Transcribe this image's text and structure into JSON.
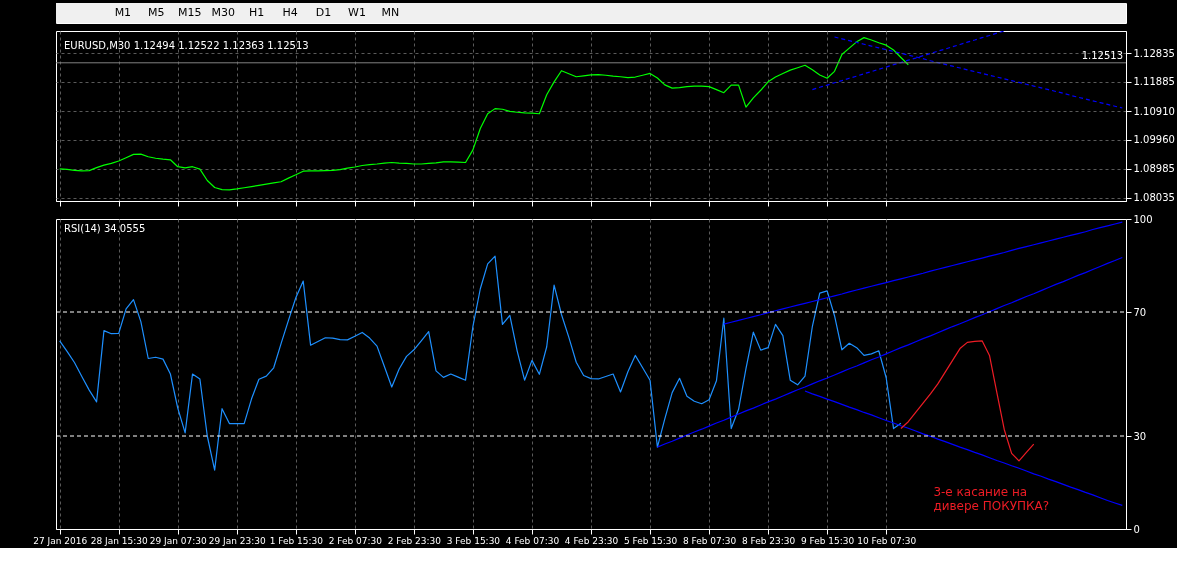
{
  "chart_data": [
    {
      "type": "other",
      "annotations": [
        "M1",
        "M5",
        "M15",
        "M30",
        "H1",
        "H4",
        "D1",
        "W1",
        "MN"
      ]
    },
    {
      "type": "line",
      "title": "EURUSD,M30  1.12494 1.12522 1.12363 1.12513",
      "ylim": [
        1.0792,
        1.1357
      ],
      "yticks": [
        {
          "value": 1.08035,
          "label": "1.08035"
        },
        {
          "value": 1.08985,
          "label": "1.08985"
        },
        {
          "value": 1.0996,
          "label": "1.09960"
        },
        {
          "value": 1.1091,
          "label": "1.10910"
        },
        {
          "value": 1.11885,
          "label": "1.11885"
        },
        {
          "value": 1.12835,
          "label": "1.12835"
        }
      ],
      "categories": [
        null,
        null,
        null,
        null,
        null,
        null,
        null,
        null,
        null,
        null,
        null,
        null,
        null,
        null,
        null,
        null,
        null,
        null,
        null,
        null,
        null,
        null,
        null,
        null,
        null,
        null,
        null,
        null,
        null,
        null,
        null,
        null,
        null,
        null,
        null,
        null,
        null,
        null,
        null,
        null,
        null,
        null,
        null,
        null,
        null,
        null,
        null,
        null,
        null,
        null,
        null,
        null,
        null,
        null,
        null,
        null,
        null,
        null,
        null,
        null,
        null,
        null,
        null,
        null,
        null,
        null,
        null,
        null,
        null,
        null,
        null,
        null,
        null,
        null,
        null,
        null,
        null,
        null,
        null,
        null,
        null,
        null,
        null,
        null,
        null,
        null,
        null,
        null,
        null,
        null,
        null,
        null,
        null,
        null,
        null,
        null,
        null,
        null,
        null,
        null,
        null,
        null,
        null,
        null,
        null,
        null,
        null,
        null,
        null,
        null,
        null,
        null,
        null,
        null,
        null,
        null,
        null,
        null,
        null,
        null,
        null,
        null,
        null,
        null,
        null,
        null,
        null,
        null,
        null,
        null,
        null,
        null,
        null,
        null,
        null,
        null,
        null,
        null,
        null,
        null,
        null,
        null,
        null,
        null,
        null
      ],
      "tick_labels": "y",
      "grid": true,
      "ref_lines": [
        {
          "axis": "y",
          "value": 1.12513,
          "label": "1.12513",
          "color": "#808080"
        }
      ],
      "series": [
        {
          "color": "#00ff00",
          "values": [
            1.0899,
            1.0897,
            1.0894,
            1.0892,
            1.0893,
            1.0903,
            1.0911,
            1.0917,
            1.0925,
            1.0936,
            1.0947,
            1.0948,
            1.0939,
            1.0934,
            1.0931,
            1.0929,
            1.0906,
            1.0902,
            1.0906,
            1.0898,
            1.086,
            1.0837,
            1.083,
            1.0829,
            1.0832,
            1.0836,
            1.084,
            1.0844,
            1.0848,
            1.0852,
            1.0856,
            1.0868,
            1.0879,
            1.0891,
            1.0892,
            1.0892,
            1.0893,
            1.0894,
            1.0896,
            1.0901,
            1.0905,
            1.091,
            1.0913,
            1.0915,
            1.0918,
            1.092,
            1.0918,
            1.0917,
            1.0915,
            1.0915,
            1.0917,
            1.0919,
            1.0922,
            1.0922,
            1.0921,
            1.092,
            1.0962,
            1.1033,
            1.1082,
            1.1099,
            1.1097,
            1.109,
            1.1087,
            1.1085,
            1.1084,
            1.1082,
            1.1145,
            1.1188,
            1.1225,
            1.1215,
            1.1205,
            1.1208,
            1.1211,
            1.1212,
            1.121,
            1.1207,
            1.1205,
            1.1202,
            1.1204,
            1.121,
            1.1216,
            1.1201,
            1.1178,
            1.1167,
            1.1169,
            1.1172,
            1.1174,
            1.1174,
            1.1172,
            1.1162,
            1.1152,
            1.1177,
            1.1177,
            1.1104,
            1.1135,
            1.116,
            1.1188,
            1.1204,
            1.1216,
            1.1227,
            1.1235,
            1.1243,
            1.1228,
            1.1211,
            1.12,
            1.1223,
            1.1279,
            1.13,
            1.1321,
            1.1335,
            1.1327,
            1.1318,
            1.131,
            1.1294,
            1.1269,
            1.1245,
            null,
            null,
            null,
            null,
            null,
            null,
            null,
            null,
            null,
            null,
            null,
            null,
            null,
            null,
            null,
            null,
            null,
            null,
            null,
            null,
            null,
            null,
            null,
            null,
            null,
            null,
            null,
            null,
            null
          ]
        },
        {
          "color": "#0000ff",
          "line_style": "dashed",
          "values": [
            null,
            null,
            null,
            null,
            null,
            null,
            null,
            null,
            null,
            null,
            null,
            null,
            null,
            null,
            null,
            null,
            null,
            null,
            null,
            null,
            null,
            null,
            null,
            null,
            null,
            null,
            null,
            null,
            null,
            null,
            null,
            null,
            null,
            null,
            null,
            null,
            null,
            null,
            null,
            null,
            null,
            null,
            null,
            null,
            null,
            null,
            null,
            null,
            null,
            null,
            null,
            null,
            null,
            null,
            null,
            null,
            null,
            null,
            null,
            null,
            null,
            null,
            null,
            null,
            null,
            null,
            null,
            null,
            null,
            null,
            null,
            null,
            null,
            null,
            null,
            null,
            null,
            null,
            null,
            null,
            null,
            null,
            null,
            null,
            null,
            null,
            null,
            null,
            null,
            null,
            null,
            null,
            null,
            null,
            null,
            null,
            null,
            null,
            null,
            null,
            null,
            null,
            1.1162,
            1.117,
            1.1177,
            1.1185,
            1.1192,
            1.12,
            1.1207,
            1.1215,
            1.1222,
            1.123,
            1.1237,
            1.1245,
            1.1252,
            1.126,
            1.1267,
            1.1275,
            1.1282,
            1.129,
            1.1297,
            1.1305,
            1.1312,
            1.132,
            1.1327,
            1.1335,
            1.1342,
            1.135,
            1.1357,
            null,
            null,
            null,
            null,
            null,
            null,
            null,
            null,
            null,
            null,
            null,
            null,
            null,
            null,
            null,
            null
          ]
        },
        {
          "color": "#0000ff",
          "line_style": "dashed",
          "values": [
            null,
            null,
            null,
            null,
            null,
            null,
            null,
            null,
            null,
            null,
            null,
            null,
            null,
            null,
            null,
            null,
            null,
            null,
            null,
            null,
            null,
            null,
            null,
            null,
            null,
            null,
            null,
            null,
            null,
            null,
            null,
            null,
            null,
            null,
            null,
            null,
            null,
            null,
            null,
            null,
            null,
            null,
            null,
            null,
            null,
            null,
            null,
            null,
            null,
            null,
            null,
            null,
            null,
            null,
            null,
            null,
            null,
            null,
            null,
            null,
            null,
            null,
            null,
            null,
            null,
            null,
            null,
            null,
            null,
            null,
            null,
            null,
            null,
            null,
            null,
            null,
            null,
            null,
            null,
            null,
            null,
            null,
            null,
            null,
            null,
            null,
            null,
            null,
            null,
            null,
            null,
            null,
            null,
            null,
            null,
            null,
            null,
            null,
            null,
            null,
            null,
            null,
            null,
            null,
            null,
            1.1337,
            1.1331,
            1.1325,
            1.1319,
            1.1313,
            1.1307,
            1.1301,
            1.1295,
            1.1289,
            1.1283,
            1.1277,
            1.1271,
            1.1265,
            1.1258,
            1.1252,
            1.1246,
            1.124,
            1.1234,
            1.1228,
            1.1222,
            1.1216,
            1.121,
            1.1204,
            1.1198,
            1.1192,
            1.1186,
            1.118,
            1.1174,
            1.1168,
            1.1162,
            1.1156,
            1.115,
            1.1143,
            1.1137,
            1.1131,
            1.1125,
            1.1119,
            1.1113,
            1.1107,
            1.1101
          ]
        }
      ]
    },
    {
      "type": "line",
      "title": "RSI(14) 34.0555",
      "ylim": [
        0,
        100
      ],
      "yticks": [
        0,
        30,
        70,
        100
      ],
      "categories": [
        "27 Jan 2016",
        null,
        null,
        null,
        null,
        null,
        null,
        null,
        "28 Jan 15:30",
        null,
        null,
        null,
        null,
        null,
        null,
        null,
        "29 Jan 07:30",
        null,
        null,
        null,
        null,
        null,
        null,
        null,
        "29 Jan 23:30",
        null,
        null,
        null,
        null,
        null,
        null,
        null,
        "1 Feb 15:30",
        null,
        null,
        null,
        null,
        null,
        null,
        null,
        "2 Feb 07:30",
        null,
        null,
        null,
        null,
        null,
        null,
        null,
        "2 Feb 23:30",
        null,
        null,
        null,
        null,
        null,
        null,
        null,
        "3 Feb 15:30",
        null,
        null,
        null,
        null,
        null,
        null,
        null,
        "4 Feb 07:30",
        null,
        null,
        null,
        null,
        null,
        null,
        null,
        "4 Feb 23:30",
        null,
        null,
        null,
        null,
        null,
        null,
        null,
        "5 Feb 15:30",
        null,
        null,
        null,
        null,
        null,
        null,
        null,
        "8 Feb 07:30",
        null,
        null,
        null,
        null,
        null,
        null,
        null,
        "8 Feb 23:30",
        null,
        null,
        null,
        null,
        null,
        null,
        null,
        "9 Feb 15:30",
        null,
        null,
        null,
        null,
        null,
        null,
        null,
        "10 Feb 07:30",
        null,
        null,
        null,
        null,
        null,
        null,
        null,
        null,
        null,
        null,
        null,
        null,
        null,
        null,
        null,
        null,
        null,
        null,
        null,
        null,
        null,
        null,
        null,
        null,
        null,
        null,
        null,
        null,
        null,
        null,
        null,
        null
      ],
      "grid": "x",
      "ref_lines": [
        {
          "axis": "y",
          "value": 70,
          "color": "#ffffff",
          "line_style": "dashed"
        },
        {
          "axis": "y",
          "value": 30,
          "color": "#ffffff",
          "line_style": "dashed"
        }
      ],
      "annotations": [
        "3-е касание на\nдивере ПОКУПКА?"
      ],
      "series": [
        {
          "color": "#1e90ff",
          "values": [
            60.7,
            57.3,
            53.7,
            49.2,
            44.8,
            41,
            64,
            63,
            63.1,
            71,
            74,
            66.9,
            55,
            55.4,
            54.8,
            50,
            39,
            31,
            50,
            48.4,
            30,
            19,
            38.8,
            34,
            34,
            34,
            42,
            48.3,
            49.3,
            52,
            59.8,
            67.3,
            74.6,
            80,
            59.3,
            60.5,
            61.7,
            61.6,
            61.1,
            61,
            62.2,
            63.4,
            61.6,
            59,
            52.4,
            45.8,
            51.6,
            55.7,
            57.8,
            60.7,
            63.7,
            51,
            48.9,
            50,
            49,
            48,
            65.4,
            77.5,
            85.5,
            88,
            66,
            68.9,
            57.4,
            48,
            54.4,
            49.9,
            58.8,
            78.7,
            69.2,
            61.8,
            53.8,
            49.5,
            48.5,
            48.4,
            49.2,
            50,
            44.2,
            50.7,
            56,
            52,
            48,
            26.4,
            35.5,
            44,
            48.6,
            42.8,
            41.2,
            40.4,
            41.7,
            47.8,
            68,
            32.4,
            38.6,
            51.7,
            63.5,
            57.7,
            58.5,
            66,
            62.4,
            48,
            46.5,
            49.3,
            65.4,
            76.1,
            76.8,
            68.8,
            57.8,
            59.9,
            58.5,
            56,
            56.5,
            57.5,
            48.8,
            32.4,
            34.1,
            null,
            null,
            null,
            null,
            null,
            null,
            null,
            null,
            null,
            null,
            null,
            null,
            null,
            null,
            null,
            null,
            null,
            null,
            null,
            null,
            null,
            null,
            null,
            null,
            null,
            null,
            null,
            null,
            null,
            null
          ]
        },
        {
          "color": "#0000ff",
          "values": [
            null,
            null,
            null,
            null,
            null,
            null,
            null,
            null,
            null,
            null,
            null,
            null,
            null,
            null,
            null,
            null,
            null,
            null,
            null,
            null,
            null,
            null,
            null,
            null,
            null,
            null,
            null,
            null,
            null,
            null,
            null,
            null,
            null,
            null,
            null,
            null,
            null,
            null,
            null,
            null,
            null,
            null,
            null,
            null,
            null,
            null,
            null,
            null,
            null,
            null,
            null,
            null,
            null,
            null,
            null,
            null,
            null,
            null,
            null,
            null,
            null,
            null,
            null,
            null,
            null,
            null,
            null,
            null,
            null,
            null,
            null,
            null,
            null,
            null,
            null,
            null,
            null,
            null,
            null,
            null,
            null,
            null,
            null,
            null,
            null,
            null,
            null,
            null,
            null,
            null,
            66.1,
            66.7,
            67.3,
            67.9,
            68.5,
            69.1,
            69.8,
            70.4,
            71,
            71.6,
            72.2,
            72.8,
            73.4,
            74,
            74.6,
            75.2,
            75.8,
            76.5,
            77.1,
            77.7,
            78.3,
            78.9,
            79.5,
            80.1,
            80.7,
            81.3,
            81.9,
            82.5,
            83.2,
            83.8,
            84.4,
            85,
            85.6,
            86.2,
            86.8,
            87.4,
            88,
            88.6,
            89.2,
            89.9,
            90.5,
            91.1,
            91.7,
            92.3,
            92.9,
            93.5,
            94.1,
            94.7,
            95.3,
            95.9,
            96.6,
            97.2,
            97.8,
            98.4,
            99
          ]
        },
        {
          "color": "#0000ff",
          "values": [
            null,
            null,
            null,
            null,
            null,
            null,
            null,
            null,
            null,
            null,
            null,
            null,
            null,
            null,
            null,
            null,
            null,
            null,
            null,
            null,
            null,
            null,
            null,
            null,
            null,
            null,
            null,
            null,
            null,
            null,
            null,
            null,
            null,
            null,
            null,
            null,
            null,
            null,
            null,
            null,
            null,
            null,
            null,
            null,
            null,
            null,
            null,
            null,
            null,
            null,
            null,
            null,
            null,
            null,
            null,
            null,
            null,
            null,
            null,
            null,
            null,
            null,
            null,
            null,
            null,
            null,
            null,
            null,
            null,
            null,
            null,
            null,
            null,
            null,
            null,
            null,
            null,
            null,
            null,
            null,
            null,
            26.4,
            27.4,
            28.3,
            29.3,
            30.3,
            31.3,
            32.2,
            33.2,
            34.2,
            35.1,
            36.1,
            37.1,
            38.1,
            39,
            40,
            41,
            41.9,
            42.9,
            43.9,
            44.9,
            45.8,
            46.8,
            47.8,
            48.7,
            49.7,
            50.7,
            51.7,
            52.6,
            53.6,
            54.6,
            55.5,
            56.5,
            57.5,
            58.5,
            59.4,
            60.4,
            61.4,
            62.3,
            63.3,
            64.3,
            65.3,
            66.2,
            67.2,
            68.2,
            69.1,
            70.1,
            71.1,
            72.1,
            73,
            74,
            75,
            75.9,
            76.9,
            77.9,
            78.9,
            79.8,
            80.8,
            81.8,
            82.7,
            83.7,
            84.7,
            85.7,
            86.6,
            87.6
          ]
        },
        {
          "color": "#0000ff",
          "values": [
            null,
            null,
            null,
            null,
            null,
            null,
            null,
            null,
            null,
            null,
            null,
            null,
            null,
            null,
            null,
            null,
            null,
            null,
            null,
            null,
            null,
            null,
            null,
            null,
            null,
            null,
            null,
            null,
            null,
            null,
            null,
            null,
            null,
            null,
            null,
            null,
            null,
            null,
            null,
            null,
            null,
            null,
            null,
            null,
            null,
            null,
            null,
            null,
            null,
            null,
            null,
            null,
            null,
            null,
            null,
            null,
            null,
            null,
            null,
            null,
            null,
            null,
            null,
            null,
            null,
            null,
            null,
            null,
            null,
            null,
            null,
            null,
            null,
            null,
            null,
            null,
            null,
            null,
            null,
            null,
            null,
            null,
            null,
            null,
            null,
            null,
            null,
            null,
            null,
            null,
            null,
            null,
            null,
            null,
            null,
            null,
            null,
            null,
            null,
            null,
            null,
            44.5,
            43.6,
            42.8,
            41.9,
            41.1,
            40.2,
            39.3,
            38.5,
            37.6,
            36.8,
            35.9,
            35,
            34.2,
            33.3,
            32.5,
            31.6,
            30.7,
            29.9,
            29,
            28.2,
            27.3,
            26.4,
            25.6,
            24.7,
            23.9,
            23,
            22.1,
            21.3,
            20.4,
            19.6,
            18.7,
            17.8,
            17,
            16.1,
            15.3,
            14.4,
            13.5,
            12.7,
            11.8,
            11,
            10.1,
            9.2,
            8.4,
            7.6
          ]
        },
        {
          "color": "#ee1c25",
          "values": [
            null,
            null,
            null,
            null,
            null,
            null,
            null,
            null,
            null,
            null,
            null,
            null,
            null,
            null,
            null,
            null,
            null,
            null,
            null,
            null,
            null,
            null,
            null,
            null,
            null,
            null,
            null,
            null,
            null,
            null,
            null,
            null,
            null,
            null,
            null,
            null,
            null,
            null,
            null,
            null,
            null,
            null,
            null,
            null,
            null,
            null,
            null,
            null,
            null,
            null,
            null,
            null,
            null,
            null,
            null,
            null,
            null,
            null,
            null,
            null,
            null,
            null,
            null,
            null,
            null,
            null,
            null,
            null,
            null,
            null,
            null,
            null,
            null,
            null,
            null,
            null,
            null,
            null,
            null,
            null,
            null,
            null,
            null,
            null,
            null,
            null,
            null,
            null,
            null,
            null,
            null,
            null,
            null,
            null,
            null,
            null,
            null,
            null,
            null,
            null,
            null,
            null,
            null,
            null,
            null,
            null,
            null,
            null,
            null,
            null,
            null,
            null,
            null,
            null,
            32.4,
            34.6,
            37.6,
            40.6,
            43.6,
            46.8,
            50.6,
            54.4,
            58.2,
            60.2,
            60.5,
            60.7,
            56,
            44,
            32.1,
            24.4,
            22,
            24.7,
            27.4,
            null,
            null,
            null,
            null,
            null,
            null,
            null,
            null,
            null,
            null,
            null,
            null
          ]
        }
      ]
    }
  ]
}
